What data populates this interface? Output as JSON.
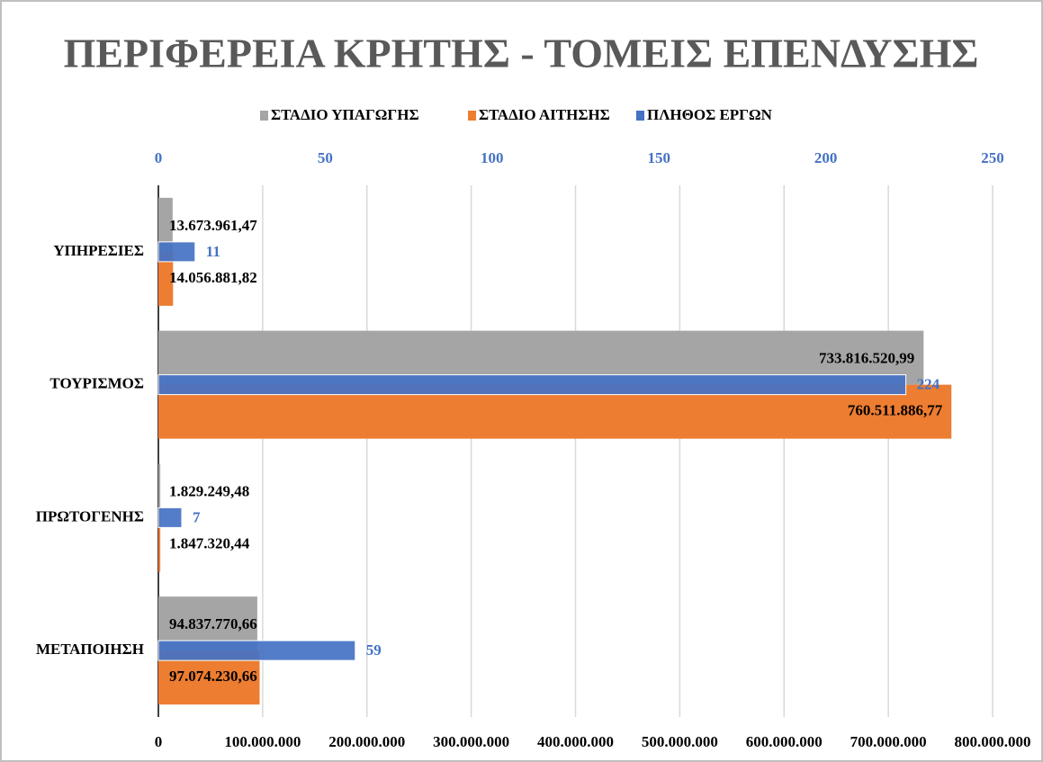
{
  "chart_data": {
    "type": "bar",
    "orientation": "horizontal",
    "title": "ΠΕΡΙΦΕΡΕΙΑ ΚΡΗΤΗΣ - ΤΟΜΕΙΣ ΕΠΕΝΔΥΣΗΣ",
    "categories": [
      "ΥΠΗΡΕΣΙΕΣ",
      "ΤΟΥΡΙΣΜΟΣ",
      "ΠΡΩΤΟΓΕΝΗΣ",
      "ΜΕΤΑΠΟΙΗΣΗ"
    ],
    "series": [
      {
        "name": "ΣΤΑΔΙΟ ΥΠΑΓΩΓΗΣ",
        "color": "#a5a5a5",
        "values": [
          13673961.47,
          733816520.99,
          1829249.48,
          94837770.66
        ],
        "value_labels": [
          "13.673.961,47",
          "733.816.520,99",
          "1.829.249,48",
          "94.837.770,66"
        ]
      },
      {
        "name": "ΣΤΑΔΙΟ ΑΙΤΗΣΗΣ",
        "color": "#ed7d31",
        "values": [
          14056881.82,
          760511886.77,
          1847320.44,
          97074230.66
        ],
        "value_labels": [
          "14.056.881,82",
          "760.511.886,77",
          "1.847.320,44",
          "97.074.230,66"
        ]
      },
      {
        "name": "ΠΛΗΘΟΣ ΕΡΓΩΝ",
        "color": "#4472c4",
        "axis": "x2",
        "values": [
          11,
          224,
          7,
          59
        ]
      }
    ],
    "xlim": [
      0,
      800000000
    ],
    "xticks": [
      0,
      {
        "value": 100000000,
        "label": "100.000.000"
      },
      {
        "value": 200000000,
        "label": "200.000.000"
      },
      {
        "value": 300000000,
        "label": "300.000.000"
      },
      {
        "value": 400000000,
        "label": "400.000.000"
      },
      {
        "value": 500000000,
        "label": "500.000.000"
      },
      {
        "value": 600000000,
        "label": "600.000.000"
      },
      {
        "value": 700000000,
        "label": "700.000.000"
      },
      {
        "value": 800000000,
        "label": "800.000.000"
      }
    ],
    "x2lim": [
      0,
      250
    ],
    "x2ticks": [
      0,
      50,
      100,
      150,
      200,
      250
    ],
    "grid": true,
    "legend": "top"
  }
}
